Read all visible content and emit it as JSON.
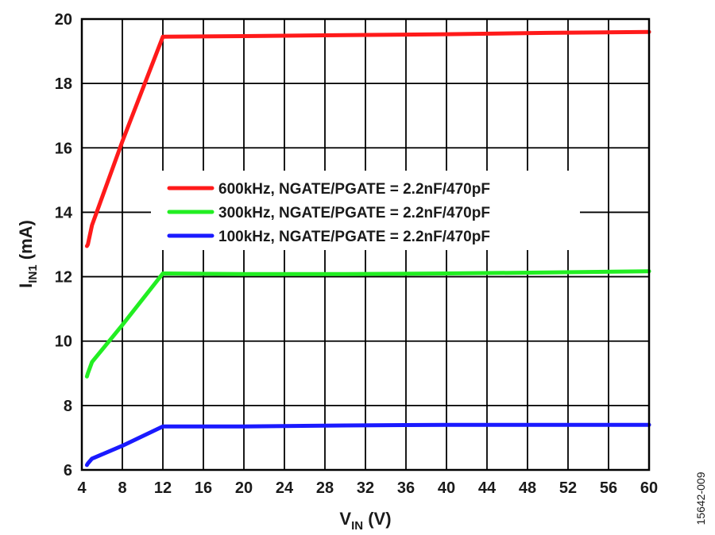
{
  "chart_data": {
    "type": "line",
    "xlabel": "V",
    "xlabel_sub": "IN",
    "xlabel_unit": " (V)",
    "ylabel": "I",
    "ylabel_sub": "IN1",
    "ylabel_unit": " (mA)",
    "xlim": [
      4,
      60
    ],
    "ylim": [
      6,
      20
    ],
    "xticks": [
      4,
      8,
      12,
      16,
      20,
      24,
      28,
      32,
      36,
      40,
      44,
      48,
      52,
      56,
      60
    ],
    "yticks": [
      6,
      8,
      10,
      12,
      14,
      16,
      18,
      20
    ],
    "grid": true,
    "legend_position": "center",
    "series": [
      {
        "name": "600kHz, NGATE/PGATE = 2.2nF/470pF",
        "color": "#ff1a1a",
        "x": [
          4.5,
          4.6,
          5.0,
          8.0,
          12.0,
          20,
          30,
          40,
          50,
          60
        ],
        "y": [
          12.95,
          13.0,
          13.6,
          16.2,
          19.45,
          19.47,
          19.5,
          19.53,
          19.57,
          19.6
        ]
      },
      {
        "name": "300kHz, NGATE/PGATE = 2.2nF/470pF",
        "color": "#22ee22",
        "x": [
          4.5,
          4.6,
          5.0,
          8.0,
          12.0,
          20,
          30,
          40,
          50,
          60
        ],
        "y": [
          8.9,
          9.0,
          9.35,
          10.5,
          12.1,
          12.08,
          12.08,
          12.1,
          12.13,
          12.17
        ]
      },
      {
        "name": "100kHz, NGATE/PGATE = 2.2nF/470pF",
        "color": "#1a1aff",
        "x": [
          4.5,
          4.6,
          5.0,
          8.0,
          12.0,
          20,
          30,
          40,
          50,
          60
        ],
        "y": [
          6.15,
          6.2,
          6.35,
          6.75,
          7.35,
          7.35,
          7.38,
          7.4,
          7.4,
          7.4
        ]
      }
    ]
  },
  "figure_id": "15642-009"
}
